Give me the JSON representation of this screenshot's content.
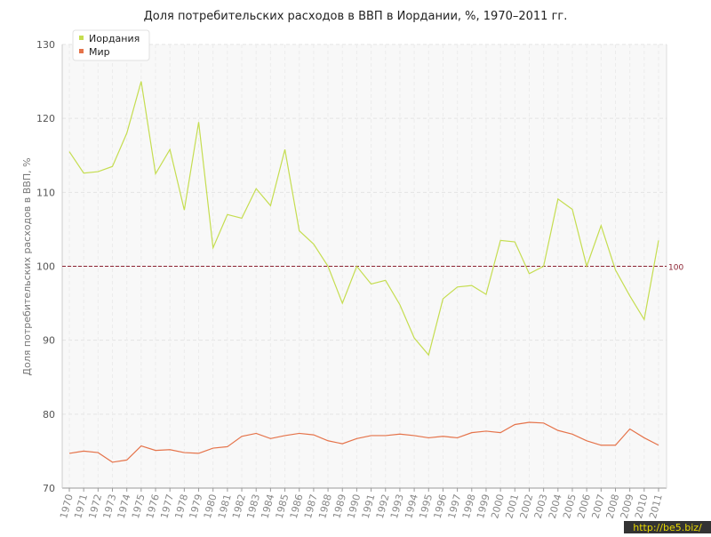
{
  "chart_data": {
    "type": "line",
    "title": "Доля потребительских расходов в ВВП в Иордании, %, 1970–2011 гг.",
    "y_label": "Доля потребительских расходов в ВВП, %",
    "categories": [
      "1970",
      "1971",
      "1972",
      "1973",
      "1974",
      "1975",
      "1976",
      "1977",
      "1978",
      "1979",
      "1980",
      "1981",
      "1982",
      "1983",
      "1984",
      "1985",
      "1986",
      "1987",
      "1988",
      "1989",
      "1990",
      "1991",
      "1992",
      "1993",
      "1994",
      "1995",
      "1996",
      "1997",
      "1998",
      "1999",
      "2000",
      "2001",
      "2002",
      "2003",
      "2004",
      "2005",
      "2006",
      "2007",
      "2008",
      "2009",
      "2010",
      "2011"
    ],
    "series": [
      {
        "name": "Иордания",
        "color": "#c5dd50",
        "values": [
          115.5,
          112.6,
          112.8,
          113.5,
          118,
          125,
          112.5,
          115.8,
          107.6,
          119.5,
          102.5,
          107,
          106.5,
          110.5,
          108.2,
          115.8,
          104.8,
          103,
          100,
          95,
          100,
          97.6,
          98.1,
          94.8,
          90.3,
          88,
          95.6,
          97.2,
          97.4,
          96.2,
          103.5,
          103.3,
          99,
          100,
          109.1,
          107.7,
          100,
          105.5,
          99.5,
          96,
          92.8,
          103.5
        ]
      },
      {
        "name": "Мир",
        "color": "#e5734a",
        "values": [
          74.7,
          75,
          74.8,
          73.5,
          73.8,
          75.7,
          75.1,
          75.2,
          74.8,
          74.7,
          75.4,
          75.6,
          77,
          77.4,
          76.7,
          77.1,
          77.4,
          77.2,
          76.4,
          76,
          76.7,
          77.1,
          77.1,
          77.3,
          77.1,
          76.8,
          77,
          76.8,
          77.5,
          77.7,
          77.5,
          78.6,
          78.9,
          78.8,
          77.8,
          77.3,
          76.4,
          75.8,
          75.8,
          78,
          76.8,
          75.8
        ]
      }
    ],
    "reference_line": 100,
    "reference_color": "#8b2232",
    "ylim": [
      70,
      130
    ],
    "yticks": [
      70,
      80,
      90,
      100,
      110,
      120,
      130
    ],
    "grid": true,
    "legend": "top-left",
    "watermark": "http://be5.biz/"
  }
}
